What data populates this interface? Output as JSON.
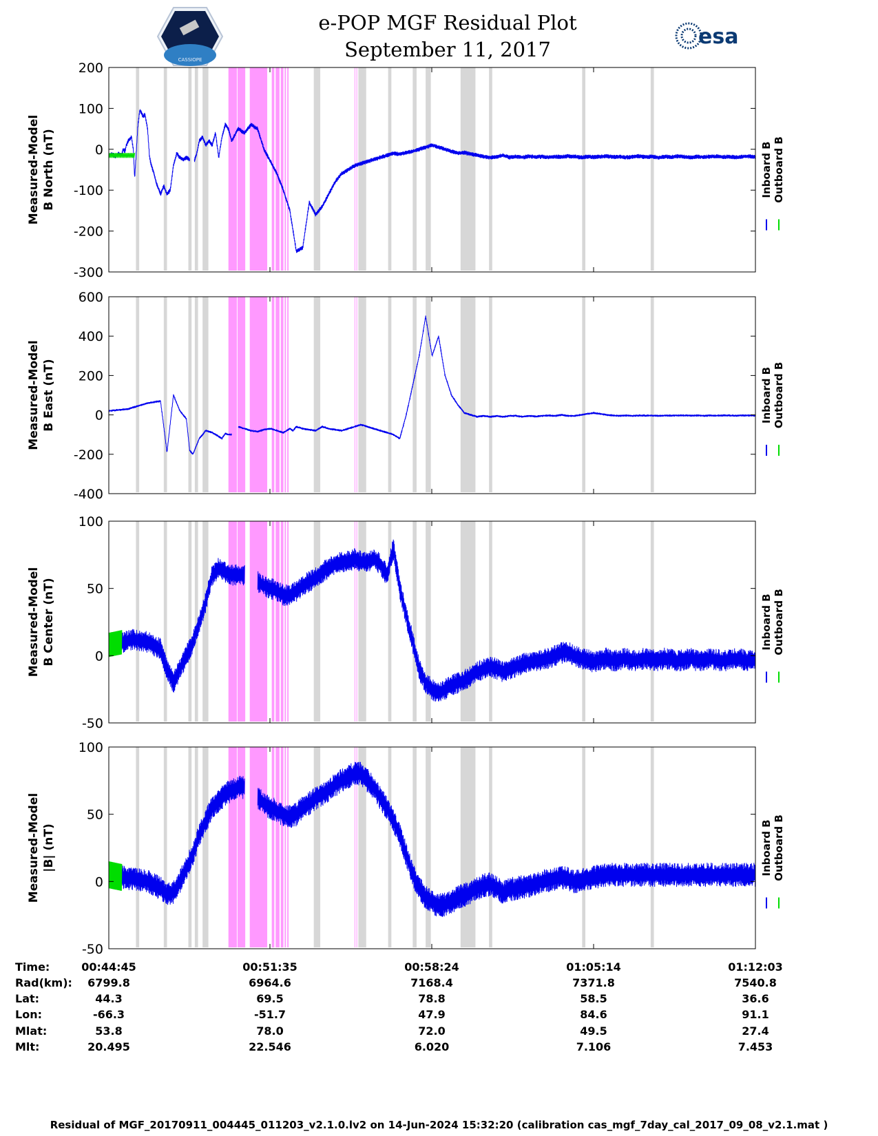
{
  "header": {
    "title_line1": "e-POP MGF Residual Plot",
    "title_line2": "September 11, 2017",
    "logo_left_text": "CASSIOPE",
    "logo_right_text": "esa"
  },
  "legend": {
    "inboard": "Inboard B",
    "outboard": "Outboard B"
  },
  "colors": {
    "inboard": "#0000ee",
    "outboard": "#00dd00",
    "gray_band": "#d7d7d7",
    "pink_band": "#ff99ff"
  },
  "chart_data": [
    {
      "type": "line",
      "title": "e-POP MGF Residual Plot",
      "ylabel_line1": "Measured-Model",
      "ylabel_line2": "B North (nT)",
      "ylim": [
        -300,
        200
      ],
      "yticks": [
        "200",
        "100",
        "0",
        "-100",
        "-200",
        "-300"
      ],
      "series": [
        {
          "name": "Inboard B",
          "x": [
            0,
            0.5,
            1,
            1.5,
            2,
            2.2,
            2.5,
            2.7,
            3,
            3.5,
            3.8,
            4,
            4.2,
            4.5,
            4.8,
            5,
            5.3,
            5.6,
            6,
            6.3,
            6.6,
            7,
            7.3,
            8,
            8.5,
            9,
            9.5,
            10,
            10.5,
            11,
            11.5,
            12,
            12.5,
            12.9,
            13.2,
            13.6,
            14,
            14.5,
            15,
            15.5,
            16,
            16.5,
            17,
            17.5,
            18,
            18.5,
            19,
            20,
            21,
            22,
            23,
            24,
            25,
            26,
            27,
            28,
            29,
            30,
            31,
            32,
            33,
            34,
            35,
            36,
            37,
            38,
            39,
            40,
            41,
            42,
            43,
            44,
            45,
            46,
            47,
            48,
            49,
            50,
            51,
            52,
            53,
            54,
            55,
            56,
            57,
            58,
            59,
            60,
            61,
            62,
            63,
            64,
            65,
            66,
            67,
            68,
            69,
            70,
            71,
            72,
            73,
            74,
            75,
            76,
            77,
            78,
            79,
            80,
            81,
            82,
            83,
            84,
            85,
            86,
            87,
            88,
            89,
            90,
            91,
            92,
            93,
            94,
            95,
            96,
            97,
            98,
            99,
            100
          ],
          "y": [
            -15,
            -12,
            -18,
            -10,
            -15,
            0,
            -5,
            10,
            20,
            30,
            0,
            -70,
            -20,
            60,
            95,
            90,
            80,
            85,
            50,
            -20,
            -40,
            -60,
            -80,
            -110,
            -90,
            -110,
            -100,
            -40,
            -10,
            -20,
            -25,
            -20,
            -25,
            null,
            -30,
            -10,
            20,
            30,
            10,
            20,
            10,
            40,
            -20,
            30,
            60,
            50,
            20,
            50,
            40,
            60,
            50,
            0,
            -30,
            -60,
            -100,
            -150,
            -250,
            -240,
            -130,
            -160,
            -140,
            -110,
            -80,
            -60,
            -50,
            -40,
            -35,
            -30,
            -25,
            -20,
            -15,
            -10,
            -12,
            -8,
            -5,
            0,
            5,
            10,
            5,
            0,
            -5,
            -10,
            -8,
            -12,
            -15,
            -18,
            -20,
            -18,
            -15,
            -20,
            -18,
            -20,
            -17,
            -19,
            -18,
            -20,
            -18,
            -19,
            -17,
            -18,
            -20,
            -18,
            -19,
            -18,
            -17,
            -19,
            -18,
            -20,
            -18,
            -17,
            -19,
            -18,
            -20,
            -18,
            -19,
            -17,
            -18,
            -20,
            -18,
            -19,
            -18,
            -17,
            -19,
            -18,
            -20,
            -18,
            -17,
            -19
          ]
        },
        {
          "name": "Outboard B",
          "x": [
            0,
            4
          ],
          "y": [
            -15,
            -15
          ]
        }
      ]
    },
    {
      "type": "line",
      "ylabel_line1": "Measured-Model",
      "ylabel_line2": "B East (nT)",
      "ylim": [
        -400,
        600
      ],
      "yticks": [
        "600",
        "400",
        "200",
        "0",
        "-200",
        "-400"
      ],
      "series": [
        {
          "name": "Inboard B",
          "x": [
            0,
            3,
            6,
            8,
            9,
            10,
            11,
            11.5,
            12,
            12.5,
            13,
            14,
            15,
            16,
            17,
            17.5,
            18,
            18.5,
            19,
            19.5,
            20,
            21,
            22,
            23,
            24,
            25,
            26,
            27,
            28,
            28.5,
            29,
            30,
            31,
            32,
            33,
            34,
            35,
            36,
            37,
            38,
            39,
            40,
            41,
            42,
            43,
            44,
            45,
            46,
            47,
            48,
            49,
            50,
            51,
            52,
            53,
            54,
            55,
            56,
            57,
            58,
            59,
            60,
            61,
            62,
            63,
            64,
            65,
            66,
            67,
            68,
            69,
            70,
            71,
            72,
            73,
            74,
            75,
            76,
            77,
            78,
            79,
            80,
            81,
            82,
            83,
            84,
            85,
            86,
            87,
            88,
            89,
            90,
            91,
            92,
            93,
            94,
            95,
            96,
            97,
            98,
            99,
            100
          ],
          "y": [
            20,
            30,
            60,
            70,
            -190,
            100,
            20,
            0,
            -20,
            -180,
            -200,
            -120,
            -80,
            -90,
            -110,
            -120,
            -95,
            -100,
            -100,
            null,
            -60,
            -70,
            -80,
            -85,
            -75,
            -70,
            -80,
            -90,
            -70,
            -80,
            -60,
            -70,
            -75,
            -80,
            -60,
            -70,
            -75,
            -80,
            -70,
            -60,
            -50,
            -60,
            -70,
            -80,
            -90,
            -100,
            -120,
            0,
            150,
            300,
            500,
            300,
            400,
            200,
            100,
            50,
            10,
            0,
            -10,
            -5,
            -10,
            -5,
            -10,
            -5,
            -5,
            -10,
            -5,
            -8,
            -5,
            -3,
            -5,
            0,
            -5,
            -5,
            0,
            5,
            10,
            5,
            0,
            -3,
            -5,
            -3,
            -5,
            -3,
            -4,
            -3,
            -5,
            -3,
            -4,
            -3,
            -3,
            -4,
            -3,
            -5,
            -3,
            -4,
            -3,
            -3,
            -4,
            -3,
            -3,
            -4
          ]
        }
      ]
    },
    {
      "type": "line",
      "ylabel_line1": "Measured-Model",
      "ylabel_line2": "B Center (nT)",
      "ylim": [
        -50,
        100
      ],
      "yticks": [
        "100",
        "50",
        "0",
        "-50"
      ],
      "series": [
        {
          "name": "Inboard B",
          "x": [
            0,
            2,
            4,
            6,
            8,
            9,
            10,
            11,
            12,
            13,
            14,
            15,
            16,
            17,
            18,
            19,
            20,
            21,
            22,
            23,
            24,
            25,
            26,
            27,
            28,
            29,
            30,
            31,
            32,
            33,
            34,
            35,
            36,
            37,
            38,
            39,
            40,
            41,
            42,
            43,
            44,
            45,
            46,
            47,
            48,
            49,
            50,
            51,
            52,
            53,
            54,
            55,
            56,
            57,
            58,
            59,
            60,
            61,
            62,
            63,
            64,
            65,
            66,
            67,
            68,
            69,
            70,
            71,
            72,
            73,
            74,
            75,
            76,
            77,
            78,
            79,
            80,
            81,
            82,
            83,
            84,
            85,
            86,
            87,
            88,
            89,
            90,
            91,
            92,
            93,
            94,
            95,
            96,
            97,
            98,
            99,
            100
          ],
          "y": [
            8,
            10,
            12,
            10,
            5,
            -10,
            -20,
            -10,
            0,
            10,
            25,
            40,
            60,
            65,
            62,
            60,
            60,
            60,
            null,
            55,
            52,
            50,
            48,
            45,
            45,
            48,
            52,
            55,
            58,
            62,
            65,
            68,
            70,
            70,
            72,
            70,
            70,
            72,
            68,
            60,
            80,
            50,
            30,
            10,
            -10,
            -20,
            -25,
            -28,
            -25,
            -22,
            -20,
            -18,
            -15,
            -12,
            -10,
            -8,
            -10,
            -12,
            -10,
            -8,
            -6,
            -5,
            -4,
            -3,
            -2,
            0,
            2,
            3,
            0,
            -2,
            -3,
            -5,
            -3,
            -2,
            -4,
            -3,
            -2,
            -4,
            -3,
            -2,
            -3,
            -4,
            -2,
            -3,
            -4,
            -3,
            -2,
            -4,
            -3,
            -2,
            -3,
            -4,
            -3,
            -2,
            -3,
            -4,
            -3
          ]
        },
        {
          "name": "Outboard B",
          "x": [
            0,
            2
          ],
          "y": [
            8,
            10
          ]
        }
      ]
    },
    {
      "type": "line",
      "ylabel_line1": "Measured-Model",
      "ylabel_line2": "|B| (nT)",
      "ylim": [
        -50,
        100
      ],
      "yticks": [
        "100",
        "50",
        "0",
        "-50"
      ],
      "series": [
        {
          "name": "Inboard B",
          "x": [
            0,
            2,
            4,
            6,
            8,
            9,
            10,
            11,
            12,
            13,
            14,
            15,
            16,
            17,
            18,
            19,
            20,
            21,
            22,
            23,
            24,
            25,
            26,
            27,
            28,
            29,
            30,
            31,
            32,
            33,
            34,
            35,
            36,
            37,
            38,
            39,
            40,
            41,
            42,
            43,
            44,
            45,
            46,
            47,
            48,
            49,
            50,
            51,
            52,
            53,
            54,
            55,
            56,
            57,
            58,
            59,
            60,
            61,
            62,
            63,
            64,
            65,
            66,
            67,
            68,
            69,
            70,
            71,
            72,
            73,
            74,
            75,
            76,
            77,
            78,
            79,
            80,
            81,
            82,
            83,
            84,
            85,
            86,
            87,
            88,
            89,
            90,
            91,
            92,
            93,
            94,
            95,
            96,
            97,
            98,
            99,
            100
          ],
          "y": [
            5,
            3,
            2,
            0,
            -5,
            -10,
            -8,
            0,
            10,
            20,
            35,
            45,
            55,
            60,
            65,
            68,
            70,
            70,
            null,
            62,
            58,
            55,
            52,
            50,
            48,
            50,
            55,
            58,
            62,
            65,
            68,
            72,
            75,
            78,
            80,
            80,
            75,
            70,
            62,
            55,
            45,
            35,
            20,
            5,
            -5,
            -12,
            -15,
            -18,
            -17,
            -15,
            -12,
            -10,
            -8,
            -5,
            -3,
            -2,
            -5,
            -8,
            -6,
            -5,
            -4,
            -3,
            -2,
            0,
            1,
            2,
            3,
            2,
            0,
            1,
            2,
            3,
            4,
            5,
            5,
            5,
            5,
            5,
            5,
            5,
            5,
            5,
            5,
            5,
            5,
            5,
            5,
            5,
            5,
            5,
            5,
            5,
            5,
            5,
            5,
            5,
            5
          ]
        },
        {
          "name": "Outboard B",
          "x": [
            0,
            2
          ],
          "y": [
            5,
            3
          ]
        }
      ]
    }
  ],
  "bands": {
    "gray": [
      [
        4.2,
        4.7
      ],
      [
        8.5,
        9.0
      ],
      [
        12.3,
        12.8
      ],
      [
        13.3,
        13.8
      ],
      [
        14.5,
        15.4
      ],
      [
        31.7,
        32.7
      ],
      [
        38.6,
        39.8
      ],
      [
        43.2,
        43.7
      ],
      [
        47.0,
        47.6
      ],
      [
        49.0,
        49.8
      ],
      [
        54.4,
        56.7
      ],
      [
        58.8,
        59.3
      ],
      [
        73.2,
        73.7
      ],
      [
        83.8,
        84.3
      ]
    ],
    "pink": [
      [
        18.5,
        19.8
      ],
      [
        19.9,
        21.1
      ],
      [
        21.8,
        24.5
      ],
      [
        25.2,
        25.6
      ],
      [
        25.8,
        26.4
      ],
      [
        26.6,
        27.0
      ],
      [
        27.2,
        27.4
      ],
      [
        27.6,
        27.8
      ],
      [
        38.0,
        38.1
      ],
      [
        38.3,
        38.4
      ]
    ]
  },
  "ephemeris": {
    "labels": [
      "Time:",
      "Rad(km):",
      "Lat:",
      "Lon:",
      "Mlat:",
      "Mlt:"
    ],
    "columns": [
      [
        "00:44:45",
        "6799.8",
        "44.3",
        "-66.3",
        "53.8",
        "20.495"
      ],
      [
        "00:51:35",
        "6964.6",
        "69.5",
        "-51.7",
        "78.0",
        "22.546"
      ],
      [
        "00:58:24",
        "7168.4",
        "78.8",
        "47.9",
        "72.0",
        "6.020"
      ],
      [
        "01:05:14",
        "7371.8",
        "58.5",
        "84.6",
        "49.5",
        "7.106"
      ],
      [
        "01:12:03",
        "7540.8",
        "36.6",
        "91.1",
        "27.4",
        "7.453"
      ]
    ]
  },
  "footer": {
    "text": "Residual of MGF_20170911_004445_011203_v2.1.0.lv2 on 14-Jun-2024 15:32:20 (calibration cas_mgf_7day_cal_2017_09_08_v2.1.mat )"
  }
}
